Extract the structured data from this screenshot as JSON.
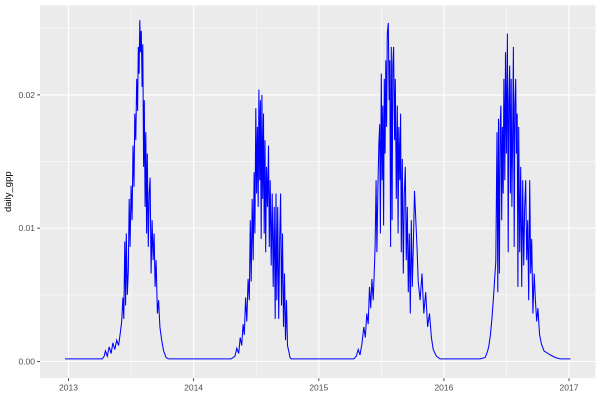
{
  "figure": {
    "kind": "ggplot2 time-series line chart",
    "background": "#FFFFFF"
  },
  "chart_data": {
    "type": "line",
    "title": "",
    "xlabel": "",
    "ylabel": "daily_gpp",
    "legend": "none",
    "grid": "major and minor, ggplot gray theme",
    "theme": {
      "panel_background": "#EBEBEB",
      "grid_major_color": "#FFFFFF",
      "grid_minor_color": "#FFFFFF",
      "axis_text_color": "#4D4D4D",
      "axis_title_color": "#000000",
      "tick_mark_color": "#333333",
      "line_color": "#0000FF"
    },
    "xlim": [
      2012.772,
      2017.212
    ],
    "ylim": [
      -0.00125,
      0.02672
    ],
    "x_ticks": [
      {
        "value": 2013,
        "label": "2013"
      },
      {
        "value": 2014,
        "label": "2014"
      },
      {
        "value": 2015,
        "label": "2015"
      },
      {
        "value": 2016,
        "label": "2016"
      },
      {
        "value": 2017,
        "label": "2017"
      }
    ],
    "x_minor": [
      2013.5,
      2014.5,
      2015.5,
      2016.5
    ],
    "y_ticks": [
      {
        "value": 0.0,
        "label": "0.00"
      },
      {
        "value": 0.01,
        "label": "0.01"
      },
      {
        "value": 0.02,
        "label": "0.02"
      }
    ],
    "y_minor": [
      0.005,
      0.015,
      0.025
    ],
    "series": [
      {
        "name": "daily_gpp",
        "color": "#0000FF",
        "points": [
          [
            2012.972,
            0.0002
          ],
          [
            2013.03,
            0.0002
          ],
          [
            2013.09,
            0.0002
          ],
          [
            2013.15,
            0.0002
          ],
          [
            2013.21,
            0.0002
          ],
          [
            2013.27,
            0.0002
          ],
          [
            2013.285,
            0.0004
          ],
          [
            2013.295,
            0.0008
          ],
          [
            2013.31,
            0.0004
          ],
          [
            2013.325,
            0.0011
          ],
          [
            2013.34,
            0.0006
          ],
          [
            2013.355,
            0.0014
          ],
          [
            2013.37,
            0.0009
          ],
          [
            2013.385,
            0.0016
          ],
          [
            2013.4,
            0.0012
          ],
          [
            2013.415,
            0.0022
          ],
          [
            2013.425,
            0.003
          ],
          [
            2013.435,
            0.0048
          ],
          [
            2013.442,
            0.0032
          ],
          [
            2013.45,
            0.009
          ],
          [
            2013.456,
            0.0042
          ],
          [
            2013.462,
            0.0096
          ],
          [
            2013.47,
            0.005
          ],
          [
            2013.478,
            0.0068
          ],
          [
            2013.485,
            0.0122
          ],
          [
            2013.492,
            0.0086
          ],
          [
            2013.5,
            0.0132
          ],
          [
            2013.508,
            0.0106
          ],
          [
            2013.515,
            0.0162
          ],
          [
            2013.523,
            0.0131
          ],
          [
            2013.53,
            0.0186
          ],
          [
            2013.538,
            0.0166
          ],
          [
            2013.545,
            0.0212
          ],
          [
            2013.552,
            0.0188
          ],
          [
            2013.558,
            0.0236
          ],
          [
            2013.564,
            0.0216
          ],
          [
            2013.57,
            0.0256
          ],
          [
            2013.576,
            0.0232
          ],
          [
            2013.582,
            0.0248
          ],
          [
            2013.588,
            0.0206
          ],
          [
            2013.594,
            0.0238
          ],
          [
            2013.6,
            0.0146
          ],
          [
            2013.606,
            0.0196
          ],
          [
            2013.612,
            0.0116
          ],
          [
            2013.618,
            0.0172
          ],
          [
            2013.624,
            0.0096
          ],
          [
            2013.63,
            0.0156
          ],
          [
            2013.638,
            0.0086
          ],
          [
            2013.645,
            0.0126
          ],
          [
            2013.652,
            0.0138
          ],
          [
            2013.66,
            0.0066
          ],
          [
            2013.668,
            0.0106
          ],
          [
            2013.676,
            0.0076
          ],
          [
            2013.684,
            0.0096
          ],
          [
            2013.692,
            0.0056
          ],
          [
            2013.7,
            0.0076
          ],
          [
            2013.71,
            0.0036
          ],
          [
            2013.72,
            0.0046
          ],
          [
            2013.73,
            0.0026
          ],
          [
            2013.745,
            0.0016
          ],
          [
            2013.76,
            0.0008
          ],
          [
            2013.78,
            0.0003
          ],
          [
            2013.8,
            0.0002
          ],
          [
            2013.9,
            0.0002
          ],
          [
            2014.0,
            0.0002
          ],
          [
            2014.1,
            0.0002
          ],
          [
            2014.2,
            0.0002
          ],
          [
            2014.3,
            0.0002
          ],
          [
            2014.33,
            0.0004
          ],
          [
            2014.345,
            0.001
          ],
          [
            2014.36,
            0.0006
          ],
          [
            2014.372,
            0.0018
          ],
          [
            2014.384,
            0.0012
          ],
          [
            2014.395,
            0.0028
          ],
          [
            2014.405,
            0.002
          ],
          [
            2014.415,
            0.0048
          ],
          [
            2014.425,
            0.003
          ],
          [
            2014.435,
            0.0062
          ],
          [
            2014.445,
            0.0046
          ],
          [
            2014.453,
            0.0106
          ],
          [
            2014.46,
            0.006
          ],
          [
            2014.468,
            0.0122
          ],
          [
            2014.476,
            0.0076
          ],
          [
            2014.483,
            0.0142
          ],
          [
            2014.49,
            0.0096
          ],
          [
            2014.497,
            0.019
          ],
          [
            2014.503,
            0.0126
          ],
          [
            2014.51,
            0.0176
          ],
          [
            2014.516,
            0.0116
          ],
          [
            2014.522,
            0.0204
          ],
          [
            2014.528,
            0.0136
          ],
          [
            2014.534,
            0.0196
          ],
          [
            2014.54,
            0.0092
          ],
          [
            2014.546,
            0.02
          ],
          [
            2014.552,
            0.0122
          ],
          [
            2014.558,
            0.0186
          ],
          [
            2014.564,
            0.0096
          ],
          [
            2014.57,
            0.0166
          ],
          [
            2014.576,
            0.0082
          ],
          [
            2014.582,
            0.0146
          ],
          [
            2014.59,
            0.0116
          ],
          [
            2014.598,
            0.0162
          ],
          [
            2014.605,
            0.0086
          ],
          [
            2014.612,
            0.0136
          ],
          [
            2014.62,
            0.0072
          ],
          [
            2014.628,
            0.0126
          ],
          [
            2014.636,
            0.0056
          ],
          [
            2014.644,
            0.0116
          ],
          [
            2014.652,
            0.0032
          ],
          [
            2014.658,
            0.0126
          ],
          [
            2014.665,
            0.0046
          ],
          [
            2014.672,
            0.0116
          ],
          [
            2014.68,
            0.0032
          ],
          [
            2014.688,
            0.0092
          ],
          [
            2014.695,
            0.0126
          ],
          [
            2014.702,
            0.0042
          ],
          [
            2014.71,
            0.0096
          ],
          [
            2014.718,
            0.0026
          ],
          [
            2014.726,
            0.0066
          ],
          [
            2014.734,
            0.0016
          ],
          [
            2014.742,
            0.0046
          ],
          [
            2014.75,
            0.0012
          ],
          [
            2014.76,
            0.0008
          ],
          [
            2014.77,
            0.0003
          ],
          [
            2014.78,
            0.0002
          ],
          [
            2014.88,
            0.0002
          ],
          [
            2014.98,
            0.0002
          ],
          [
            2015.08,
            0.0002
          ],
          [
            2015.18,
            0.0002
          ],
          [
            2015.28,
            0.0002
          ],
          [
            2015.3,
            0.0004
          ],
          [
            2015.315,
            0.0009
          ],
          [
            2015.33,
            0.0005
          ],
          [
            2015.345,
            0.0013
          ],
          [
            2015.36,
            0.0026
          ],
          [
            2015.372,
            0.0018
          ],
          [
            2015.384,
            0.0036
          ],
          [
            2015.395,
            0.0028
          ],
          [
            2015.406,
            0.0056
          ],
          [
            2015.415,
            0.004
          ],
          [
            2015.425,
            0.0062
          ],
          [
            2015.435,
            0.0046
          ],
          [
            2015.443,
            0.0066
          ],
          [
            2015.45,
            0.0086
          ],
          [
            2015.458,
            0.0136
          ],
          [
            2015.465,
            0.0082
          ],
          [
            2015.472,
            0.0126
          ],
          [
            2015.48,
            0.0162
          ],
          [
            2015.487,
            0.0178
          ],
          [
            2015.493,
            0.0096
          ],
          [
            2015.5,
            0.0216
          ],
          [
            2015.506,
            0.0136
          ],
          [
            2015.512,
            0.0192
          ],
          [
            2015.518,
            0.0102
          ],
          [
            2015.524,
            0.0212
          ],
          [
            2015.53,
            0.0156
          ],
          [
            2015.536,
            0.0226
          ],
          [
            2015.542,
            0.0176
          ],
          [
            2015.548,
            0.0246
          ],
          [
            2015.556,
            0.0254
          ],
          [
            2015.562,
            0.0196
          ],
          [
            2015.568,
            0.0226
          ],
          [
            2015.574,
            0.0086
          ],
          [
            2015.58,
            0.0236
          ],
          [
            2015.586,
            0.0106
          ],
          [
            2015.592,
            0.0222
          ],
          [
            2015.598,
            0.0236
          ],
          [
            2015.606,
            0.0166
          ],
          [
            2015.612,
            0.0212
          ],
          [
            2015.62,
            0.0122
          ],
          [
            2015.628,
            0.0192
          ],
          [
            2015.634,
            0.0096
          ],
          [
            2015.64,
            0.0176
          ],
          [
            2015.648,
            0.0136
          ],
          [
            2015.654,
            0.0186
          ],
          [
            2015.66,
            0.0082
          ],
          [
            2015.668,
            0.0152
          ],
          [
            2015.676,
            0.0066
          ],
          [
            2015.684,
            0.0126
          ],
          [
            2015.692,
            0.0146
          ],
          [
            2015.7,
            0.0076
          ],
          [
            2015.708,
            0.0116
          ],
          [
            2015.716,
            0.0052
          ],
          [
            2015.724,
            0.0096
          ],
          [
            2015.732,
            0.0036
          ],
          [
            2015.74,
            0.0106
          ],
          [
            2015.748,
            0.0056
          ],
          [
            2015.756,
            0.0086
          ],
          [
            2015.765,
            0.0128
          ],
          [
            2015.775,
            0.0108
          ],
          [
            2015.785,
            0.0086
          ],
          [
            2015.795,
            0.006
          ],
          [
            2015.81,
            0.0046
          ],
          [
            2015.825,
            0.0066
          ],
          [
            2015.84,
            0.0036
          ],
          [
            2015.855,
            0.0052
          ],
          [
            2015.87,
            0.0026
          ],
          [
            2015.885,
            0.0036
          ],
          [
            2015.9,
            0.0018
          ],
          [
            2015.915,
            0.0009
          ],
          [
            2015.94,
            0.0004
          ],
          [
            2015.97,
            0.0002
          ],
          [
            2016.05,
            0.0002
          ],
          [
            2016.13,
            0.0002
          ],
          [
            2016.21,
            0.0002
          ],
          [
            2016.29,
            0.0002
          ],
          [
            2016.33,
            0.0003
          ],
          [
            2016.35,
            0.0008
          ],
          [
            2016.36,
            0.0012
          ],
          [
            2016.372,
            0.002
          ],
          [
            2016.384,
            0.0032
          ],
          [
            2016.395,
            0.0046
          ],
          [
            2016.405,
            0.006
          ],
          [
            2016.415,
            0.0075
          ],
          [
            2016.425,
            0.0172
          ],
          [
            2016.431,
            0.0052
          ],
          [
            2016.437,
            0.0182
          ],
          [
            2016.444,
            0.0066
          ],
          [
            2016.45,
            0.0178
          ],
          [
            2016.456,
            0.0192
          ],
          [
            2016.462,
            0.0106
          ],
          [
            2016.468,
            0.0176
          ],
          [
            2016.474,
            0.0126
          ],
          [
            2016.48,
            0.0212
          ],
          [
            2016.487,
            0.0136
          ],
          [
            2016.493,
            0.0232
          ],
          [
            2016.5,
            0.0156
          ],
          [
            2016.508,
            0.0246
          ],
          [
            2016.514,
            0.0082
          ],
          [
            2016.52,
            0.0196
          ],
          [
            2016.526,
            0.0222
          ],
          [
            2016.532,
            0.0126
          ],
          [
            2016.538,
            0.0212
          ],
          [
            2016.544,
            0.0116
          ],
          [
            2016.55,
            0.0176
          ],
          [
            2016.556,
            0.0236
          ],
          [
            2016.562,
            0.0086
          ],
          [
            2016.568,
            0.0192
          ],
          [
            2016.574,
            0.0212
          ],
          [
            2016.58,
            0.0156
          ],
          [
            2016.586,
            0.0186
          ],
          [
            2016.592,
            0.0056
          ],
          [
            2016.598,
            0.0176
          ],
          [
            2016.606,
            0.0082
          ],
          [
            2016.614,
            0.0146
          ],
          [
            2016.622,
            0.0056
          ],
          [
            2016.63,
            0.0136
          ],
          [
            2016.638,
            0.0072
          ],
          [
            2016.646,
            0.0116
          ],
          [
            2016.654,
            0.0136
          ],
          [
            2016.662,
            0.0076
          ],
          [
            2016.67,
            0.0106
          ],
          [
            2016.678,
            0.0046
          ],
          [
            2016.686,
            0.0136
          ],
          [
            2016.694,
            0.0066
          ],
          [
            2016.702,
            0.0092
          ],
          [
            2016.712,
            0.0036
          ],
          [
            2016.722,
            0.0066
          ],
          [
            2016.732,
            0.0046
          ],
          [
            2016.742,
            0.003
          ],
          [
            2016.752,
            0.004
          ],
          [
            2016.765,
            0.002
          ],
          [
            2016.78,
            0.0013
          ],
          [
            2016.8,
            0.0008
          ],
          [
            2016.85,
            0.0005
          ],
          [
            2016.89,
            0.0003
          ],
          [
            2016.93,
            0.0002
          ],
          [
            2017.012,
            0.0002
          ]
        ]
      }
    ]
  }
}
